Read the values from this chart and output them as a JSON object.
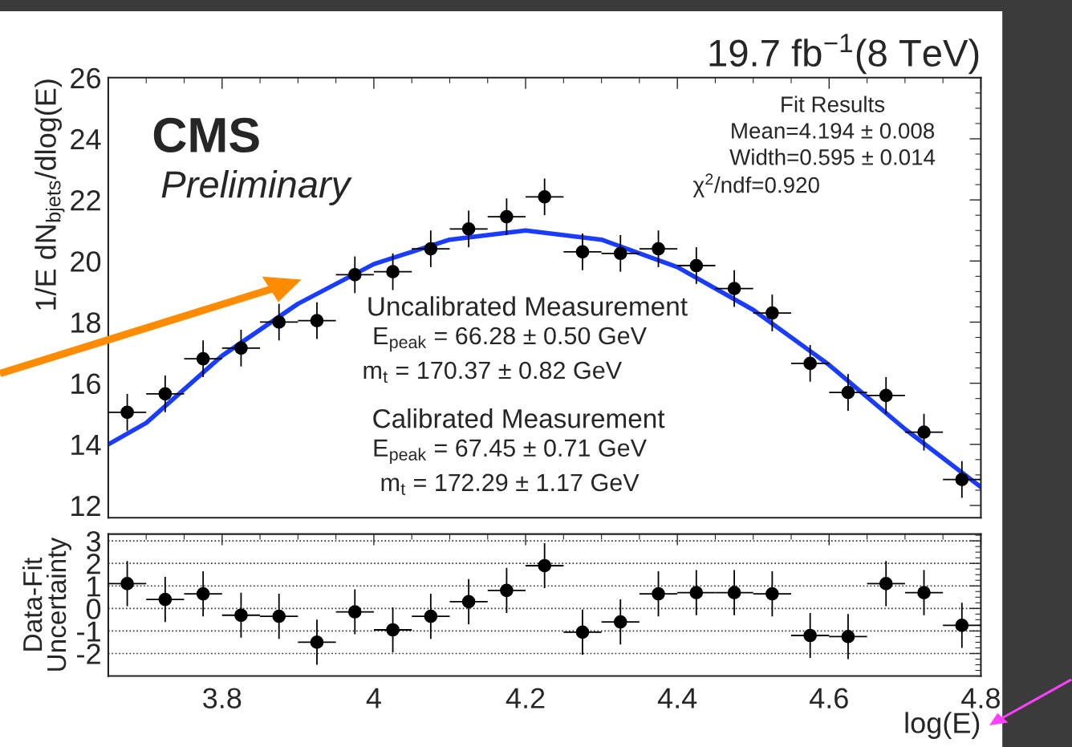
{
  "chart_data": [
    {
      "type": "scatter",
      "title": "19.7 fb$^{−1}$(8 TeV)",
      "ylabel": "1/E dN$_{bjets}$/dlog(E)",
      "annotations": [
        "CMS",
        "Preliminary",
        "Fit Results",
        "Mean=4.194 ± 0.008",
        "Width=0.595 ± 0.014",
        "χ$^{2}$/ndf=0.920",
        "Uncalibrated Measurement",
        "E$_{peak}$ = 66.28 ± 0.50 GeV",
        "m$_{t}$ = 170.37 ± 0.82 GeV",
        "Calibrated Measurement",
        "E$_{peak}$ = 67.45 ± 0.71 GeV",
        "m$_{t}$ = 172.29 ± 1.17 GeV"
      ],
      "xlim": [
        3.65,
        4.8
      ],
      "xticks": [
        3.8,
        4.0,
        4.2,
        4.4,
        4.6,
        4.8
      ],
      "ylim": [
        11.6,
        26
      ],
      "yticks": [
        12,
        14,
        16,
        18,
        20,
        22,
        24,
        26
      ],
      "tick_labels": "y",
      "series": [
        {
          "marker": "circle",
          "color": "#000000",
          "x": [
            3.675,
            3.725,
            3.775,
            3.825,
            3.875,
            3.925,
            3.975,
            4.025,
            4.075,
            4.125,
            4.175,
            4.225,
            4.275,
            4.325,
            4.375,
            4.425,
            4.475,
            4.525,
            4.575,
            4.625,
            4.675,
            4.725,
            4.775
          ],
          "values": [
            15.05,
            15.65,
            16.8,
            17.15,
            18.0,
            18.05,
            19.55,
            19.65,
            20.4,
            21.05,
            21.45,
            22.1,
            20.3,
            20.25,
            20.4,
            19.85,
            19.1,
            18.3,
            16.65,
            15.7,
            15.6,
            14.4,
            12.85
          ],
          "errors": [
            0.6,
            0.6,
            0.6,
            0.6,
            0.6,
            0.6,
            0.6,
            0.6,
            0.6,
            0.6,
            0.6,
            0.6,
            0.6,
            0.6,
            0.6,
            0.6,
            0.6,
            0.6,
            0.6,
            0.6,
            0.6,
            0.6,
            0.6
          ],
          "xerrors": [
            0.025,
            0.025,
            0.025,
            0.025,
            0.025,
            0.025,
            0.025,
            0.025,
            0.025,
            0.025,
            0.025,
            0.025,
            0.025,
            0.025,
            0.025,
            0.025,
            0.025,
            0.025,
            0.025,
            0.025,
            0.025,
            0.025,
            0.025
          ]
        },
        {
          "type": "line",
          "color": "#1a3cff",
          "x": [
            3.65,
            3.7,
            3.8,
            3.9,
            4.0,
            4.1,
            4.2,
            4.3,
            4.4,
            4.5,
            4.6,
            4.7,
            4.8
          ],
          "values": [
            14.0,
            14.7,
            16.9,
            18.6,
            19.9,
            20.7,
            21.0,
            20.7,
            19.8,
            18.4,
            16.6,
            14.5,
            12.6
          ]
        }
      ]
    },
    {
      "type": "scatter",
      "ylabel": "Data-Fit\nUncertainty",
      "xlabel": "log(E)",
      "xlim": [
        3.65,
        4.8
      ],
      "xticks": [
        3.8,
        4,
        4.2,
        4.4,
        4.6,
        4.8
      ],
      "ylim": [
        -3,
        3.3
      ],
      "yticks": [
        -2,
        -1,
        0,
        1,
        2,
        3
      ],
      "grid": "y",
      "series": [
        {
          "marker": "circle",
          "color": "#000000",
          "x": [
            3.675,
            3.725,
            3.775,
            3.825,
            3.875,
            3.925,
            3.975,
            4.025,
            4.075,
            4.125,
            4.175,
            4.225,
            4.275,
            4.325,
            4.375,
            4.425,
            4.475,
            4.525,
            4.575,
            4.625,
            4.675,
            4.725,
            4.775
          ],
          "values": [
            1.1,
            0.4,
            0.65,
            -0.3,
            -0.35,
            -1.5,
            -0.15,
            -0.95,
            -0.35,
            0.3,
            0.8,
            1.9,
            -1.05,
            -0.6,
            0.65,
            0.7,
            0.7,
            0.65,
            -1.2,
            -1.25,
            1.1,
            0.7,
            -0.75
          ],
          "errors": [
            1,
            1,
            1,
            1,
            1,
            1,
            1,
            1,
            1,
            1,
            1,
            1,
            1,
            1,
            1,
            1,
            1,
            1,
            1,
            1,
            1,
            1,
            1
          ],
          "xerrors": [
            0.025,
            0.025,
            0.025,
            0.025,
            0.025,
            0.025,
            0.025,
            0.025,
            0.025,
            0.025,
            0.025,
            0.025,
            0.025,
            0.025,
            0.025,
            0.025,
            0.025,
            0.025,
            0.025,
            0.025,
            0.025,
            0.025,
            0.025
          ]
        }
      ]
    }
  ]
}
